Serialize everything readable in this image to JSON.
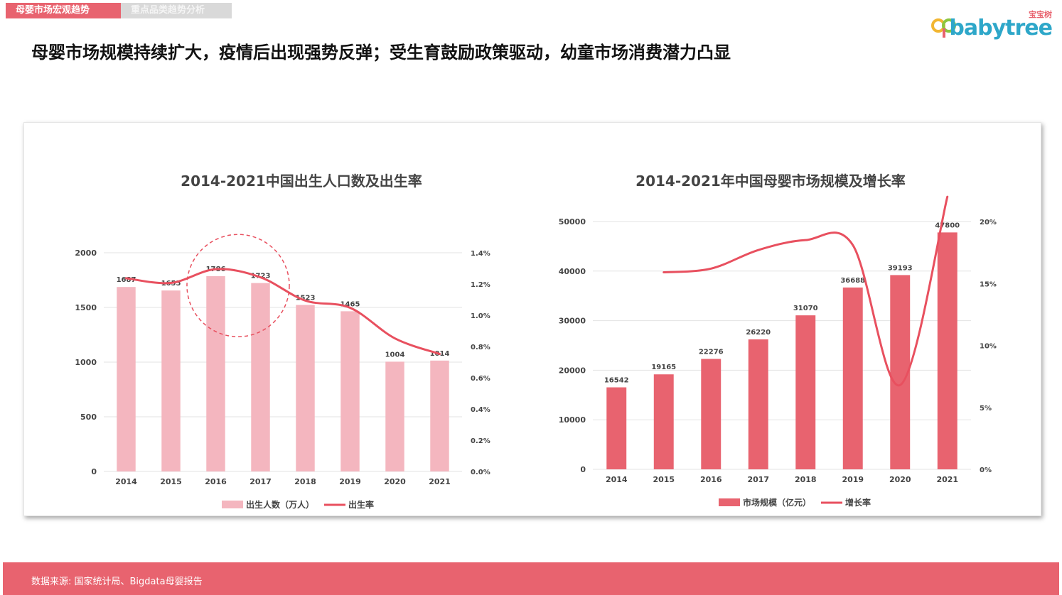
{
  "tabs": [
    {
      "label": "母婴市场宏观趋势",
      "active": true
    },
    {
      "label": "重点品类趋势分析",
      "active": false
    }
  ],
  "logo": {
    "sub": "宝宝树",
    "text": "babytree"
  },
  "headline": "母婴市场规模持续扩大，疫情后出现强势反弹；受生育鼓励政策驱动，幼童市场消费潜力凸显",
  "footer": {
    "source": "数据来源: 国家统计局、Bigdata母婴报告"
  },
  "colors": {
    "accent": "#e8636f",
    "bar_light": "#f4b6bf",
    "bar_dark": "#e8636f",
    "line": "#e8505f"
  },
  "chart_data": [
    {
      "type": "bar",
      "title": "2014-2021中国出生人口数及出生率",
      "categories": [
        "2014",
        "2015",
        "2016",
        "2017",
        "2018",
        "2019",
        "2020",
        "2021"
      ],
      "series": [
        {
          "name": "出生人数（万人）",
          "type": "bar",
          "axis": "left",
          "values": [
            1687,
            1655,
            1786,
            1723,
            1523,
            1465,
            1004,
            1014
          ]
        },
        {
          "name": "出生率",
          "type": "line",
          "axis": "right",
          "values": [
            1.237,
            1.207,
            1.295,
            1.243,
            1.094,
            1.048,
            0.852,
            0.752
          ]
        }
      ],
      "ylim_left": [
        0,
        2000
      ],
      "yticks_left": [
        "0",
        "500",
        "1000",
        "1500",
        "2000"
      ],
      "ylim_right": [
        0,
        1.4
      ],
      "yticks_right": [
        "0.0%",
        "0.2%",
        "0.4%",
        "0.6%",
        "0.8%",
        "1.0%",
        "1.2%",
        "1.4%"
      ],
      "highlight": "2016-2017",
      "grid": "horizontal",
      "legend": "bottom"
    },
    {
      "type": "bar",
      "title": "2014-2021年中国母婴市场规模及增长率",
      "categories": [
        "2014",
        "2015",
        "2016",
        "2017",
        "2018",
        "2019",
        "2020",
        "2021"
      ],
      "series": [
        {
          "name": "市场规模（亿元）",
          "type": "bar",
          "axis": "left",
          "values": [
            16542,
            19165,
            22276,
            26220,
            31070,
            36688,
            39193,
            47800
          ]
        },
        {
          "name": "增长率",
          "type": "line",
          "axis": "right",
          "values": [
            null,
            15.9,
            16.2,
            17.7,
            18.5,
            18.1,
            6.8,
            22.0
          ]
        }
      ],
      "ylim_left": [
        0,
        50000
      ],
      "yticks_left": [
        "0",
        "10000",
        "20000",
        "30000",
        "40000",
        "50000"
      ],
      "ylim_right": [
        0,
        20
      ],
      "yticks_right": [
        "0%",
        "5%",
        "10%",
        "15%",
        "20%"
      ],
      "grid": "horizontal",
      "legend": "bottom"
    }
  ]
}
